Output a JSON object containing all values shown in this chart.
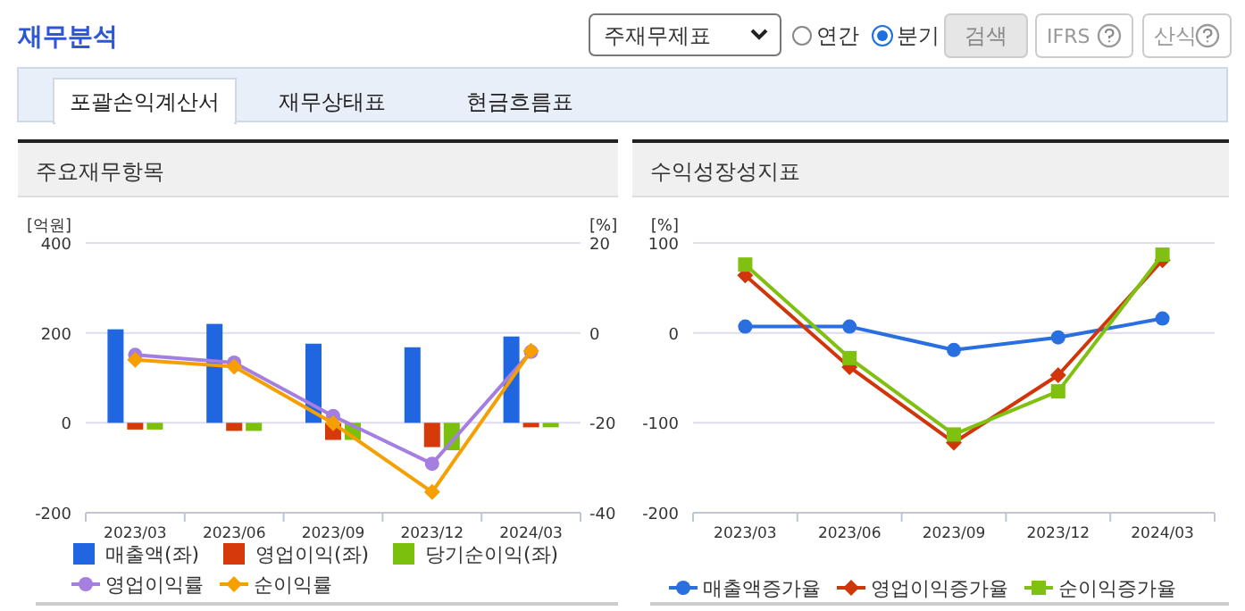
{
  "chart_data": [
    {
      "type": "other",
      "annotations": [
        "재무분석",
        "주재무제표",
        "연간",
        "분기",
        "검색",
        "IFRS",
        "산식",
        "포괄손익계산서",
        "재무상태표",
        "현금흐름표"
      ]
    },
    {
      "type": "bar",
      "title": "주요재무항목",
      "ylabel": "[억원]",
      "y2label": "[%]",
      "categories": [
        "2023/03",
        "2023/06",
        "2023/09",
        "2023/12",
        "2024/03"
      ],
      "ylim": [
        -200,
        400
      ],
      "yticks": [
        -200,
        0,
        200,
        400
      ],
      "y2lim": [
        -40,
        20
      ],
      "y2ticks": [
        -40,
        -20,
        0,
        20
      ],
      "grid": "y",
      "legend": "bottom",
      "series": [
        {
          "name": "매출액(좌)",
          "color": "#1f66e0",
          "values": [
            208,
            220,
            176,
            168,
            192
          ]
        },
        {
          "name": "영업이익(좌)",
          "color": "#d63a0a",
          "values": [
            -15,
            -18,
            -38,
            -54,
            -10
          ]
        },
        {
          "name": "당기순이익(좌)",
          "color": "#7cc00e",
          "values": [
            -15,
            -18,
            -38,
            -61,
            -10
          ]
        },
        {
          "name": "영업이익률",
          "type": "line",
          "axis": "y2",
          "marker": "circle",
          "color": "#a47ee0",
          "values": [
            -4.9,
            -6.6,
            -18.5,
            -29.1,
            -4.2
          ]
        },
        {
          "name": "순이익률",
          "type": "line",
          "axis": "y2",
          "marker": "diamond",
          "color": "#f5a000",
          "values": [
            -6.0,
            -7.5,
            -20.1,
            -35.4,
            -4.0
          ]
        }
      ]
    },
    {
      "type": "line",
      "title": "수익성장성지표",
      "ylabel": "[%]",
      "categories": [
        "2023/03",
        "2023/06",
        "2023/09",
        "2023/12",
        "2024/03"
      ],
      "ylim": [
        -200,
        100
      ],
      "yticks": [
        -200,
        -100,
        0,
        100
      ],
      "grid": "y",
      "legend": "bottom",
      "series": [
        {
          "name": "매출액증가율",
          "marker": "circle",
          "color": "#2a6fe0",
          "values": [
            7,
            7,
            -19,
            -5,
            16
          ]
        },
        {
          "name": "영업이익증가율",
          "marker": "diamond",
          "color": "#d0360a",
          "values": [
            64,
            -38,
            -122,
            -47,
            81
          ]
        },
        {
          "name": "순이익증가율",
          "marker": "square",
          "color": "#80c010",
          "values": [
            76,
            -28,
            -113,
            -65,
            87
          ]
        }
      ]
    }
  ]
}
